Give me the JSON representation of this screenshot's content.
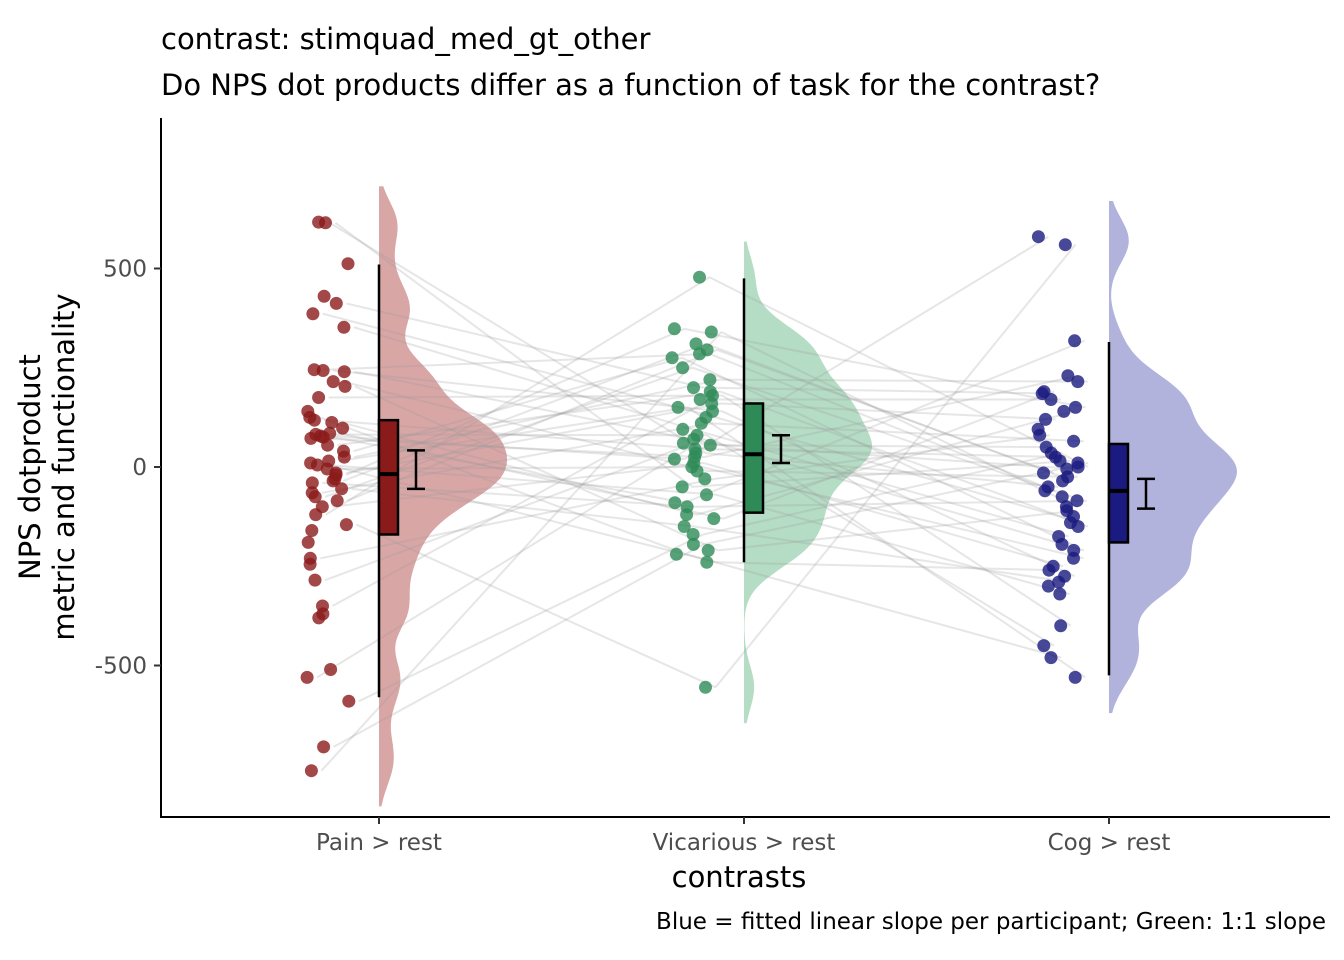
{
  "chart_data": {
    "type": "raincloud",
    "title": "contrast:  stimquad_med_gt_other",
    "subtitle": "Do NPS dot products differ as a function of task for the contrast?",
    "xlabel": "contrasts",
    "ylabel_lines": [
      "NPS dotproduct",
      "metric and functionality"
    ],
    "caption": "Blue = fitted linear slope per participant; Green: 1:1 slope",
    "categories": [
      "Pain > rest",
      "Vicarious > rest",
      "Cog > rest"
    ],
    "ylim": [
      -875,
      880
    ],
    "y_ticks": [
      500,
      0,
      -500
    ],
    "y_tick_labels": [
      "500",
      "0",
      "-500"
    ],
    "grid": false,
    "series": [
      {
        "category": "Pain > rest",
        "color": "#8b1a1a",
        "violin_color": "#d9a6a6",
        "box": {
          "whisker_low": -580,
          "q1": -170,
          "median": -18,
          "q3": 118,
          "whisker_high": 510
        },
        "mean_ci": {
          "mean": -5,
          "low": -55,
          "high": 42
        },
        "points": [
          617,
          615,
          512,
          430,
          412,
          386,
          352,
          245,
          240,
          243,
          215,
          203,
          175,
          140,
          125,
          112,
          118,
          98,
          85,
          82,
          78,
          75,
          72,
          55,
          40,
          25,
          15,
          10,
          5,
          -5,
          -15,
          -20,
          -30,
          -35,
          -40,
          -55,
          -65,
          -75,
          -85,
          -100,
          -120,
          -145,
          -160,
          -190,
          -230,
          -245,
          -285,
          -350,
          -370,
          -380,
          -510,
          -530,
          -590,
          -705,
          -765
        ]
      },
      {
        "category": "Vicarious > rest",
        "color": "#2e8b57",
        "violin_color": "#b5dcc4",
        "box": {
          "whisker_low": -240,
          "q1": -115,
          "median": 32,
          "q3": 160,
          "whisker_high": 475
        },
        "mean_ci": {
          "mean": 45,
          "low": 10,
          "high": 80
        },
        "points": [
          478,
          348,
          340,
          310,
          295,
          285,
          275,
          250,
          220,
          200,
          190,
          180,
          170,
          160,
          150,
          140,
          125,
          110,
          95,
          80,
          70,
          60,
          55,
          45,
          35,
          25,
          20,
          10,
          0,
          -10,
          -30,
          -50,
          -70,
          -90,
          -100,
          -120,
          -130,
          -150,
          -170,
          -195,
          -210,
          -220,
          -240,
          -555
        ]
      },
      {
        "category": "Cog > rest",
        "color": "#1a1a80",
        "violin_color": "#b2b3dc",
        "box": {
          "whisker_low": -525,
          "q1": -190,
          "median": -60,
          "q3": 58,
          "whisker_high": 315
        },
        "mean_ci": {
          "mean": -65,
          "low": -105,
          "high": -30
        },
        "points": [
          580,
          560,
          318,
          230,
          215,
          190,
          185,
          170,
          150,
          140,
          120,
          95,
          80,
          65,
          50,
          35,
          25,
          15,
          10,
          0,
          -5,
          -15,
          -25,
          -35,
          -50,
          -60,
          -75,
          -85,
          -100,
          -110,
          -125,
          -140,
          -150,
          -175,
          -195,
          -210,
          -230,
          -250,
          -260,
          -275,
          -290,
          -300,
          -320,
          -400,
          -450,
          -480,
          -530
        ]
      }
    ]
  }
}
